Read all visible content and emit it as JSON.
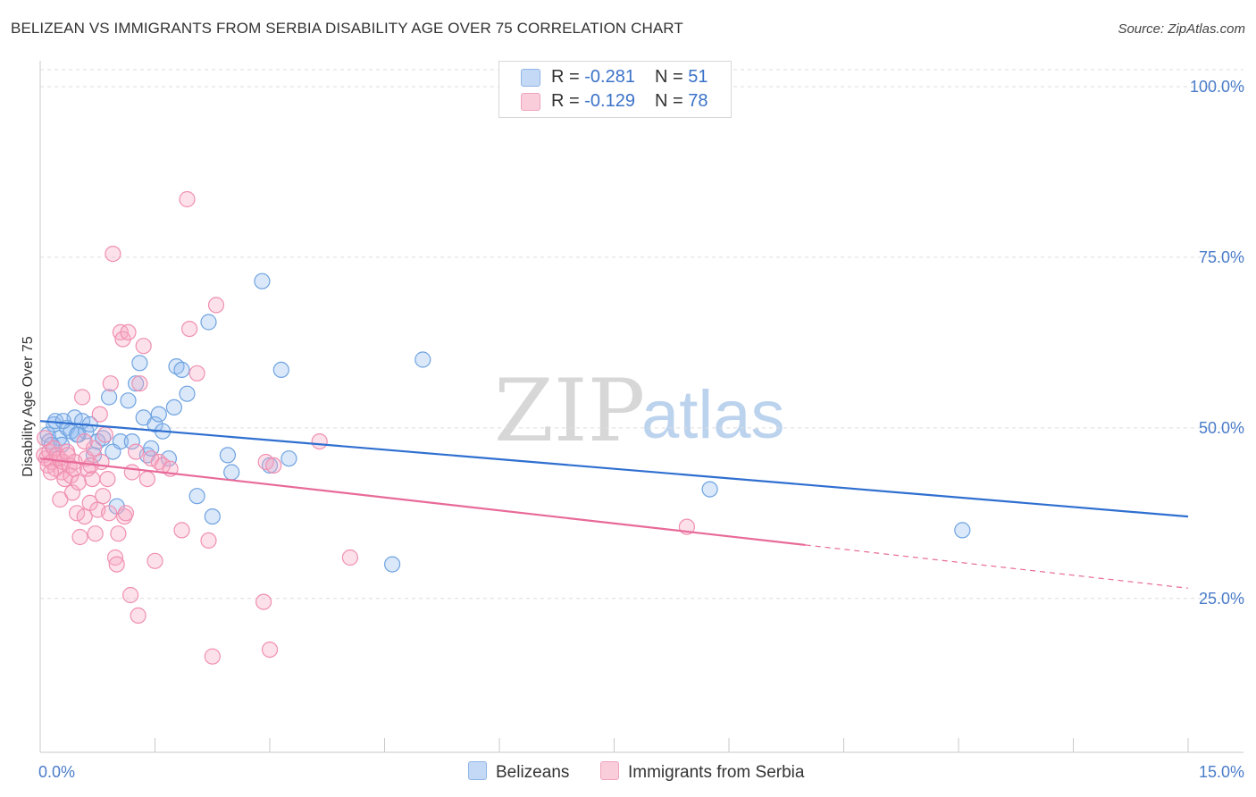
{
  "title": "BELIZEAN VS IMMIGRANTS FROM SERBIA DISABILITY AGE OVER 75 CORRELATION CHART",
  "source": "Source: ZipAtlas.com",
  "watermark": {
    "zip": "ZIP",
    "atlas": "atlas"
  },
  "legend": {
    "rows": [
      {
        "r_label": "R = ",
        "r_value": "-0.281",
        "n_label": "N = ",
        "n_value": "51",
        "color": "#a9c9f0"
      },
      {
        "r_label": "R = ",
        "r_value": "-0.129",
        "n_label": "N = ",
        "n_value": "78",
        "color": "#f5b6ca"
      }
    ]
  },
  "bottom_legend": {
    "series1": "Belizeans",
    "series2": "Immigrants from Serbia"
  },
  "chart_data": {
    "type": "scatter",
    "title": "BELIZEAN VS IMMIGRANTS FROM SERBIA DISABILITY AGE OVER 75 CORRELATION CHART",
    "xlabel": "",
    "ylabel": "Disability Age Over 75",
    "xlim": [
      0,
      15
    ],
    "ylim": [
      0,
      100
    ],
    "x_tick_labels": [
      "0.0%",
      "15.0%"
    ],
    "y_ticks": [
      25,
      50,
      75,
      100
    ],
    "y_tick_labels": [
      "25.0%",
      "50.0%",
      "75.0%",
      "100.0%"
    ],
    "grid": true,
    "legend_position": "top-center",
    "series": [
      {
        "name": "Belizeans",
        "color": "#6fa3e0",
        "r": -0.281,
        "n": 51,
        "trend": {
          "x": [
            0.0,
            15.0
          ],
          "y": [
            51.0,
            37.0
          ],
          "solid_until": 15.0
        },
        "points": [
          [
            0.1,
            49.0
          ],
          [
            0.12,
            48.0
          ],
          [
            0.18,
            50.5
          ],
          [
            0.2,
            51.0
          ],
          [
            0.25,
            48.5
          ],
          [
            0.28,
            47.5
          ],
          [
            0.35,
            50.0
          ],
          [
            0.4,
            49.5
          ],
          [
            0.45,
            51.5
          ],
          [
            0.5,
            49.0
          ],
          [
            0.55,
            51.0
          ],
          [
            0.6,
            49.5
          ],
          [
            0.65,
            50.5
          ],
          [
            0.7,
            46.0
          ],
          [
            0.75,
            48.0
          ],
          [
            0.82,
            48.5
          ],
          [
            0.9,
            54.5
          ],
          [
            0.95,
            46.5
          ],
          [
            1.0,
            38.5
          ],
          [
            1.05,
            48.0
          ],
          [
            1.15,
            54.0
          ],
          [
            1.25,
            56.5
          ],
          [
            1.3,
            59.5
          ],
          [
            1.35,
            51.5
          ],
          [
            1.4,
            46.0
          ],
          [
            1.45,
            47.0
          ],
          [
            1.5,
            50.5
          ],
          [
            1.55,
            52.0
          ],
          [
            1.6,
            49.5
          ],
          [
            1.75,
            53.0
          ],
          [
            1.78,
            59.0
          ],
          [
            1.85,
            58.5
          ],
          [
            1.92,
            55.0
          ],
          [
            2.05,
            40.0
          ],
          [
            2.2,
            65.5
          ],
          [
            2.25,
            37.0
          ],
          [
            2.45,
            46.0
          ],
          [
            2.5,
            43.5
          ],
          [
            2.9,
            71.5
          ],
          [
            3.0,
            44.5
          ],
          [
            3.15,
            58.5
          ],
          [
            3.25,
            45.5
          ],
          [
            5.0,
            60.0
          ],
          [
            4.6,
            30.0
          ],
          [
            8.75,
            41.0
          ],
          [
            12.05,
            35.0
          ],
          [
            0.15,
            47.5
          ],
          [
            0.3,
            51.0
          ],
          [
            0.48,
            49.0
          ],
          [
            1.2,
            48.0
          ],
          [
            1.68,
            45.5
          ]
        ]
      },
      {
        "name": "Immigrants from Serbia",
        "color": "#f18eb0",
        "r": -0.129,
        "n": 78,
        "trend": {
          "x": [
            0.0,
            15.0
          ],
          "y": [
            45.5,
            26.5
          ],
          "solid_until": 10.0
        },
        "points": [
          [
            0.05,
            46.0
          ],
          [
            0.08,
            45.5
          ],
          [
            0.1,
            44.5
          ],
          [
            0.12,
            46.5
          ],
          [
            0.15,
            45.0
          ],
          [
            0.18,
            47.0
          ],
          [
            0.2,
            44.0
          ],
          [
            0.22,
            46.0
          ],
          [
            0.25,
            45.5
          ],
          [
            0.28,
            43.5
          ],
          [
            0.3,
            45.0
          ],
          [
            0.32,
            42.5
          ],
          [
            0.35,
            46.5
          ],
          [
            0.38,
            44.5
          ],
          [
            0.4,
            43.0
          ],
          [
            0.42,
            40.5
          ],
          [
            0.45,
            45.0
          ],
          [
            0.48,
            37.5
          ],
          [
            0.5,
            42.0
          ],
          [
            0.52,
            34.0
          ],
          [
            0.55,
            54.5
          ],
          [
            0.58,
            37.0
          ],
          [
            0.6,
            45.5
          ],
          [
            0.62,
            44.0
          ],
          [
            0.65,
            39.0
          ],
          [
            0.68,
            42.5
          ],
          [
            0.7,
            47.0
          ],
          [
            0.72,
            34.5
          ],
          [
            0.75,
            38.0
          ],
          [
            0.78,
            52.0
          ],
          [
            0.8,
            45.0
          ],
          [
            0.82,
            40.0
          ],
          [
            0.85,
            49.0
          ],
          [
            0.88,
            42.5
          ],
          [
            0.9,
            37.5
          ],
          [
            0.92,
            56.5
          ],
          [
            0.95,
            75.5
          ],
          [
            0.98,
            31.0
          ],
          [
            1.0,
            30.0
          ],
          [
            1.02,
            34.5
          ],
          [
            1.05,
            64.0
          ],
          [
            1.08,
            63.0
          ],
          [
            1.1,
            37.0
          ],
          [
            1.12,
            37.5
          ],
          [
            1.15,
            64.0
          ],
          [
            1.18,
            25.5
          ],
          [
            1.2,
            43.5
          ],
          [
            1.25,
            46.5
          ],
          [
            1.28,
            22.5
          ],
          [
            1.3,
            56.5
          ],
          [
            1.35,
            62.0
          ],
          [
            1.4,
            42.5
          ],
          [
            1.45,
            45.5
          ],
          [
            1.5,
            30.5
          ],
          [
            1.55,
            45.0
          ],
          [
            1.6,
            44.5
          ],
          [
            1.85,
            35.0
          ],
          [
            1.92,
            83.5
          ],
          [
            1.95,
            64.5
          ],
          [
            2.05,
            58.0
          ],
          [
            2.2,
            33.5
          ],
          [
            2.3,
            68.0
          ],
          [
            2.25,
            16.5
          ],
          [
            2.95,
            45.0
          ],
          [
            2.92,
            24.5
          ],
          [
            3.0,
            17.5
          ],
          [
            3.05,
            44.5
          ],
          [
            3.65,
            48.0
          ],
          [
            4.05,
            31.0
          ],
          [
            8.45,
            35.5
          ],
          [
            0.06,
            48.5
          ],
          [
            0.14,
            43.5
          ],
          [
            0.26,
            39.5
          ],
          [
            0.44,
            44.0
          ],
          [
            0.58,
            48.0
          ],
          [
            0.66,
            44.5
          ],
          [
            1.7,
            44.0
          ],
          [
            0.36,
            46.0
          ]
        ]
      }
    ]
  }
}
